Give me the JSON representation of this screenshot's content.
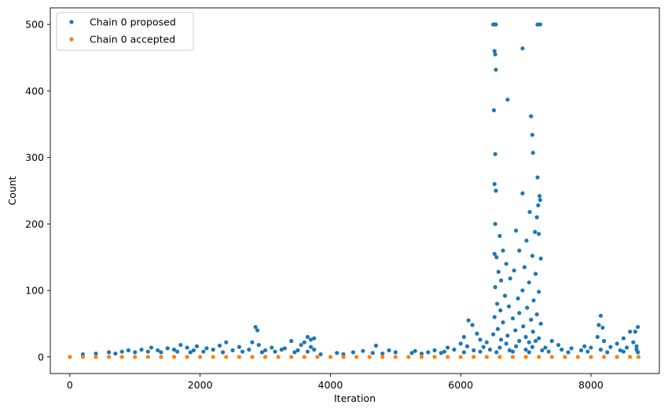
{
  "chart_data": {
    "type": "scatter",
    "title": "",
    "xlabel": "Iteration",
    "ylabel": "Count",
    "xlim": [
      -300,
      9050
    ],
    "ylim": [
      -25,
      525
    ],
    "xticks": [
      0,
      2000,
      4000,
      6000,
      8000
    ],
    "yticks": [
      0,
      100,
      200,
      300,
      400,
      500
    ],
    "grid": false,
    "legend": {
      "position": "top-left"
    },
    "series": [
      {
        "name": "Chain 0 proposed",
        "color": "#1f77b4",
        "points": [
          [
            6500,
            500
          ],
          [
            6520,
            500
          ],
          [
            6540,
            500
          ],
          [
            7180,
            500
          ],
          [
            7220,
            500
          ],
          [
            6520,
            460
          ],
          [
            6530,
            455
          ],
          [
            6540,
            432
          ],
          [
            6950,
            464
          ],
          [
            6720,
            387
          ],
          [
            6510,
            371
          ],
          [
            7080,
            362
          ],
          [
            7100,
            334
          ],
          [
            6530,
            305
          ],
          [
            7110,
            307
          ],
          [
            7180,
            270
          ],
          [
            6520,
            260
          ],
          [
            6540,
            250
          ],
          [
            6950,
            246
          ],
          [
            7210,
            242
          ],
          [
            7220,
            236
          ],
          [
            7190,
            228
          ],
          [
            7060,
            218
          ],
          [
            6530,
            200
          ],
          [
            7170,
            210
          ],
          [
            7140,
            188
          ],
          [
            6600,
            182
          ],
          [
            6850,
            190
          ],
          [
            7200,
            185
          ],
          [
            7010,
            175
          ],
          [
            6650,
            160
          ],
          [
            6900,
            160
          ],
          [
            6520,
            155
          ],
          [
            6550,
            150
          ],
          [
            7100,
            152
          ],
          [
            7230,
            148
          ],
          [
            6700,
            140
          ],
          [
            6980,
            135
          ],
          [
            6580,
            128
          ],
          [
            6820,
            130
          ],
          [
            7150,
            125
          ],
          [
            6620,
            115
          ],
          [
            6760,
            118
          ],
          [
            7050,
            112
          ],
          [
            6530,
            105
          ],
          [
            6950,
            100
          ],
          [
            7200,
            98
          ],
          [
            6680,
            92
          ],
          [
            6880,
            88
          ],
          [
            7120,
            85
          ],
          [
            6560,
            80
          ],
          [
            6740,
            76
          ],
          [
            7020,
            74
          ],
          [
            6610,
            70
          ],
          [
            6900,
            66
          ],
          [
            7170,
            64
          ],
          [
            6520,
            60
          ],
          [
            6800,
            58
          ],
          [
            7080,
            56
          ],
          [
            8150,
            62
          ],
          [
            6120,
            55
          ],
          [
            6180,
            48
          ],
          [
            6650,
            52
          ],
          [
            7230,
            50
          ],
          [
            6960,
            46
          ],
          [
            8120,
            48
          ],
          [
            8180,
            44
          ],
          [
            8720,
            45
          ],
          [
            2850,
            45
          ],
          [
            2880,
            40
          ],
          [
            6570,
            42
          ],
          [
            6840,
            40
          ],
          [
            7110,
            38
          ],
          [
            8600,
            38
          ],
          [
            8680,
            38
          ],
          [
            6250,
            35
          ],
          [
            6500,
            34
          ],
          [
            6720,
            32
          ],
          [
            7000,
            30
          ],
          [
            7200,
            28
          ],
          [
            3650,
            30
          ],
          [
            3700,
            26
          ],
          [
            3750,
            28
          ],
          [
            8100,
            30
          ],
          [
            8500,
            28
          ],
          [
            6050,
            30
          ],
          [
            6300,
            26
          ],
          [
            6620,
            26
          ],
          [
            6900,
            24
          ],
          [
            7150,
            24
          ],
          [
            2400,
            22
          ],
          [
            2800,
            22
          ],
          [
            3400,
            24
          ],
          [
            3600,
            22
          ],
          [
            8200,
            24
          ],
          [
            6000,
            20
          ],
          [
            6400,
            22
          ],
          [
            6700,
            20
          ],
          [
            7050,
            22
          ],
          [
            7400,
            24
          ],
          [
            1700,
            18
          ],
          [
            1950,
            16
          ],
          [
            2300,
            17
          ],
          [
            2900,
            18
          ],
          [
            3550,
            18
          ],
          [
            4700,
            17
          ],
          [
            7500,
            18
          ],
          [
            7900,
            16
          ],
          [
            8400,
            20
          ],
          [
            8650,
            22
          ],
          [
            1250,
            14
          ],
          [
            1500,
            13
          ],
          [
            1800,
            14
          ],
          [
            2100,
            13
          ],
          [
            2600,
            15
          ],
          [
            3100,
            14
          ],
          [
            3300,
            13
          ],
          [
            3700,
            15
          ],
          [
            5800,
            14
          ],
          [
            6100,
            16
          ],
          [
            6350,
            15
          ],
          [
            6600,
            14
          ],
          [
            6850,
            16
          ],
          [
            7100,
            15
          ],
          [
            7300,
            14
          ],
          [
            7700,
            13
          ],
          [
            8000,
            14
          ],
          [
            8300,
            15
          ],
          [
            8550,
            14
          ],
          [
            8700,
            16
          ],
          [
            900,
            10
          ],
          [
            1100,
            11
          ],
          [
            1350,
            10
          ],
          [
            1600,
            11
          ],
          [
            1900,
            10
          ],
          [
            2200,
            11
          ],
          [
            2500,
            10
          ],
          [
            2750,
            11
          ],
          [
            3000,
            10
          ],
          [
            3250,
            11
          ],
          [
            3500,
            10
          ],
          [
            3750,
            11
          ],
          [
            4500,
            9
          ],
          [
            4900,
            10
          ],
          [
            5300,
            9
          ],
          [
            5600,
            10
          ],
          [
            5900,
            11
          ],
          [
            6200,
            10
          ],
          [
            6450,
            11
          ],
          [
            6750,
            10
          ],
          [
            7000,
            11
          ],
          [
            7250,
            10
          ],
          [
            7550,
            11
          ],
          [
            7850,
            10
          ],
          [
            8150,
            11
          ],
          [
            8450,
            10
          ],
          [
            8700,
            11
          ],
          [
            600,
            7
          ],
          [
            800,
            8
          ],
          [
            1000,
            7
          ],
          [
            1200,
            8
          ],
          [
            1400,
            7
          ],
          [
            1650,
            8
          ],
          [
            1850,
            7
          ],
          [
            2050,
            8
          ],
          [
            2350,
            7
          ],
          [
            2650,
            8
          ],
          [
            2950,
            7
          ],
          [
            3150,
            8
          ],
          [
            3450,
            7
          ],
          [
            3650,
            8
          ],
          [
            4100,
            6
          ],
          [
            4350,
            7
          ],
          [
            4650,
            6
          ],
          [
            5000,
            7
          ],
          [
            5250,
            6
          ],
          [
            5500,
            7
          ],
          [
            5750,
            8
          ],
          [
            6050,
            7
          ],
          [
            6300,
            8
          ],
          [
            6550,
            7
          ],
          [
            6800,
            8
          ],
          [
            7050,
            7
          ],
          [
            7350,
            8
          ],
          [
            7650,
            7
          ],
          [
            7950,
            8
          ],
          [
            8250,
            7
          ],
          [
            8500,
            8
          ],
          [
            8720,
            7
          ],
          [
            200,
            4
          ],
          [
            400,
            5
          ],
          [
            700,
            5
          ],
          [
            3850,
            4
          ],
          [
            4200,
            4
          ],
          [
            4800,
            5
          ],
          [
            5400,
            5
          ],
          [
            5700,
            6
          ]
        ]
      },
      {
        "name": "Chain 0 accepted",
        "color": "#ff7f0e",
        "points": [
          [
            0,
            0
          ],
          [
            200,
            0
          ],
          [
            400,
            0
          ],
          [
            600,
            0
          ],
          [
            800,
            0
          ],
          [
            1000,
            0
          ],
          [
            1200,
            0
          ],
          [
            1400,
            0
          ],
          [
            1600,
            0
          ],
          [
            1800,
            0
          ],
          [
            2000,
            0
          ],
          [
            2200,
            0
          ],
          [
            2400,
            0
          ],
          [
            2600,
            0
          ],
          [
            2800,
            0
          ],
          [
            3000,
            0
          ],
          [
            3200,
            0
          ],
          [
            3400,
            0
          ],
          [
            3600,
            0
          ],
          [
            3800,
            0
          ],
          [
            4000,
            0
          ],
          [
            4200,
            0
          ],
          [
            4400,
            0
          ],
          [
            4600,
            0
          ],
          [
            4800,
            0
          ],
          [
            5000,
            0
          ],
          [
            5200,
            0
          ],
          [
            5400,
            0
          ],
          [
            5600,
            0
          ],
          [
            5800,
            0
          ],
          [
            6000,
            0
          ],
          [
            6200,
            0
          ],
          [
            6400,
            0
          ],
          [
            6600,
            0
          ],
          [
            6800,
            0
          ],
          [
            7000,
            0
          ],
          [
            7200,
            0
          ],
          [
            7400,
            0
          ],
          [
            7600,
            0
          ],
          [
            7800,
            0
          ],
          [
            8000,
            0
          ],
          [
            8200,
            0
          ],
          [
            8400,
            0
          ],
          [
            8600,
            0
          ],
          [
            8730,
            0
          ]
        ]
      }
    ]
  }
}
